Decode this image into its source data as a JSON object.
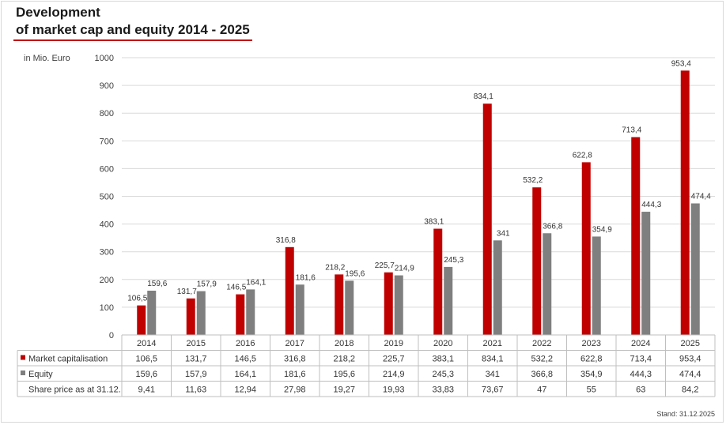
{
  "title_line1": "Development",
  "title_line2": "of market cap and equity 2014 - 2025",
  "unit_label": "in Mio. Euro",
  "footer": "Stand: 31.12.2025",
  "chart_data": {
    "type": "bar",
    "categories": [
      "2014",
      "2015",
      "2016",
      "2017",
      "2018",
      "2019",
      "2020",
      "2021",
      "2022",
      "2023",
      "2024",
      "2025"
    ],
    "ylim": [
      0,
      1000
    ],
    "yticks": [
      0,
      100,
      200,
      300,
      400,
      500,
      600,
      700,
      800,
      900,
      1000
    ],
    "grid": true,
    "series": [
      {
        "name": "Market capitalisation",
        "color": "#c00000",
        "values": [
          106.5,
          131.7,
          146.5,
          316.8,
          218.2,
          225.7,
          383.1,
          834.1,
          532.2,
          622.8,
          713.4,
          953.4
        ],
        "labels": [
          "106,5",
          "131,7",
          "146,5",
          "316,8",
          "218,2",
          "225,7",
          "383,1",
          "834,1",
          "532,2",
          "622,8",
          "713,4",
          "953,4"
        ]
      },
      {
        "name": "Equity",
        "color": "#7f7f7f",
        "values": [
          159.6,
          157.9,
          164.1,
          181.6,
          195.6,
          214.9,
          245.3,
          341,
          366.8,
          354.9,
          444.3,
          474.4
        ],
        "labels": [
          "159,6",
          "157,9",
          "164,1",
          "181,6",
          "195,6",
          "214,9",
          "245,3",
          "341",
          "366,8",
          "354,9",
          "444,3",
          "474,4"
        ]
      }
    ],
    "table_rows": [
      {
        "label": "Market capitalisation",
        "marker_color": "#c00000",
        "values": [
          "106,5",
          "131,7",
          "146,5",
          "316,8",
          "218,2",
          "225,7",
          "383,1",
          "834,1",
          "532,2",
          "622,8",
          "713,4",
          "953,4"
        ]
      },
      {
        "label": "Equity",
        "marker_color": "#7f7f7f",
        "values": [
          "159,6",
          "157,9",
          "164,1",
          "181,6",
          "195,6",
          "214,9",
          "245,3",
          "341",
          "366,8",
          "354,9",
          "444,3",
          "474,4"
        ]
      },
      {
        "label": "Share price as at 31.12.",
        "marker_color": "",
        "values": [
          "9,41",
          "11,63",
          "12,94",
          "27,98",
          "19,27",
          "19,93",
          "33,83",
          "73,67",
          "47",
          "55",
          "63",
          "84,2"
        ]
      }
    ]
  }
}
